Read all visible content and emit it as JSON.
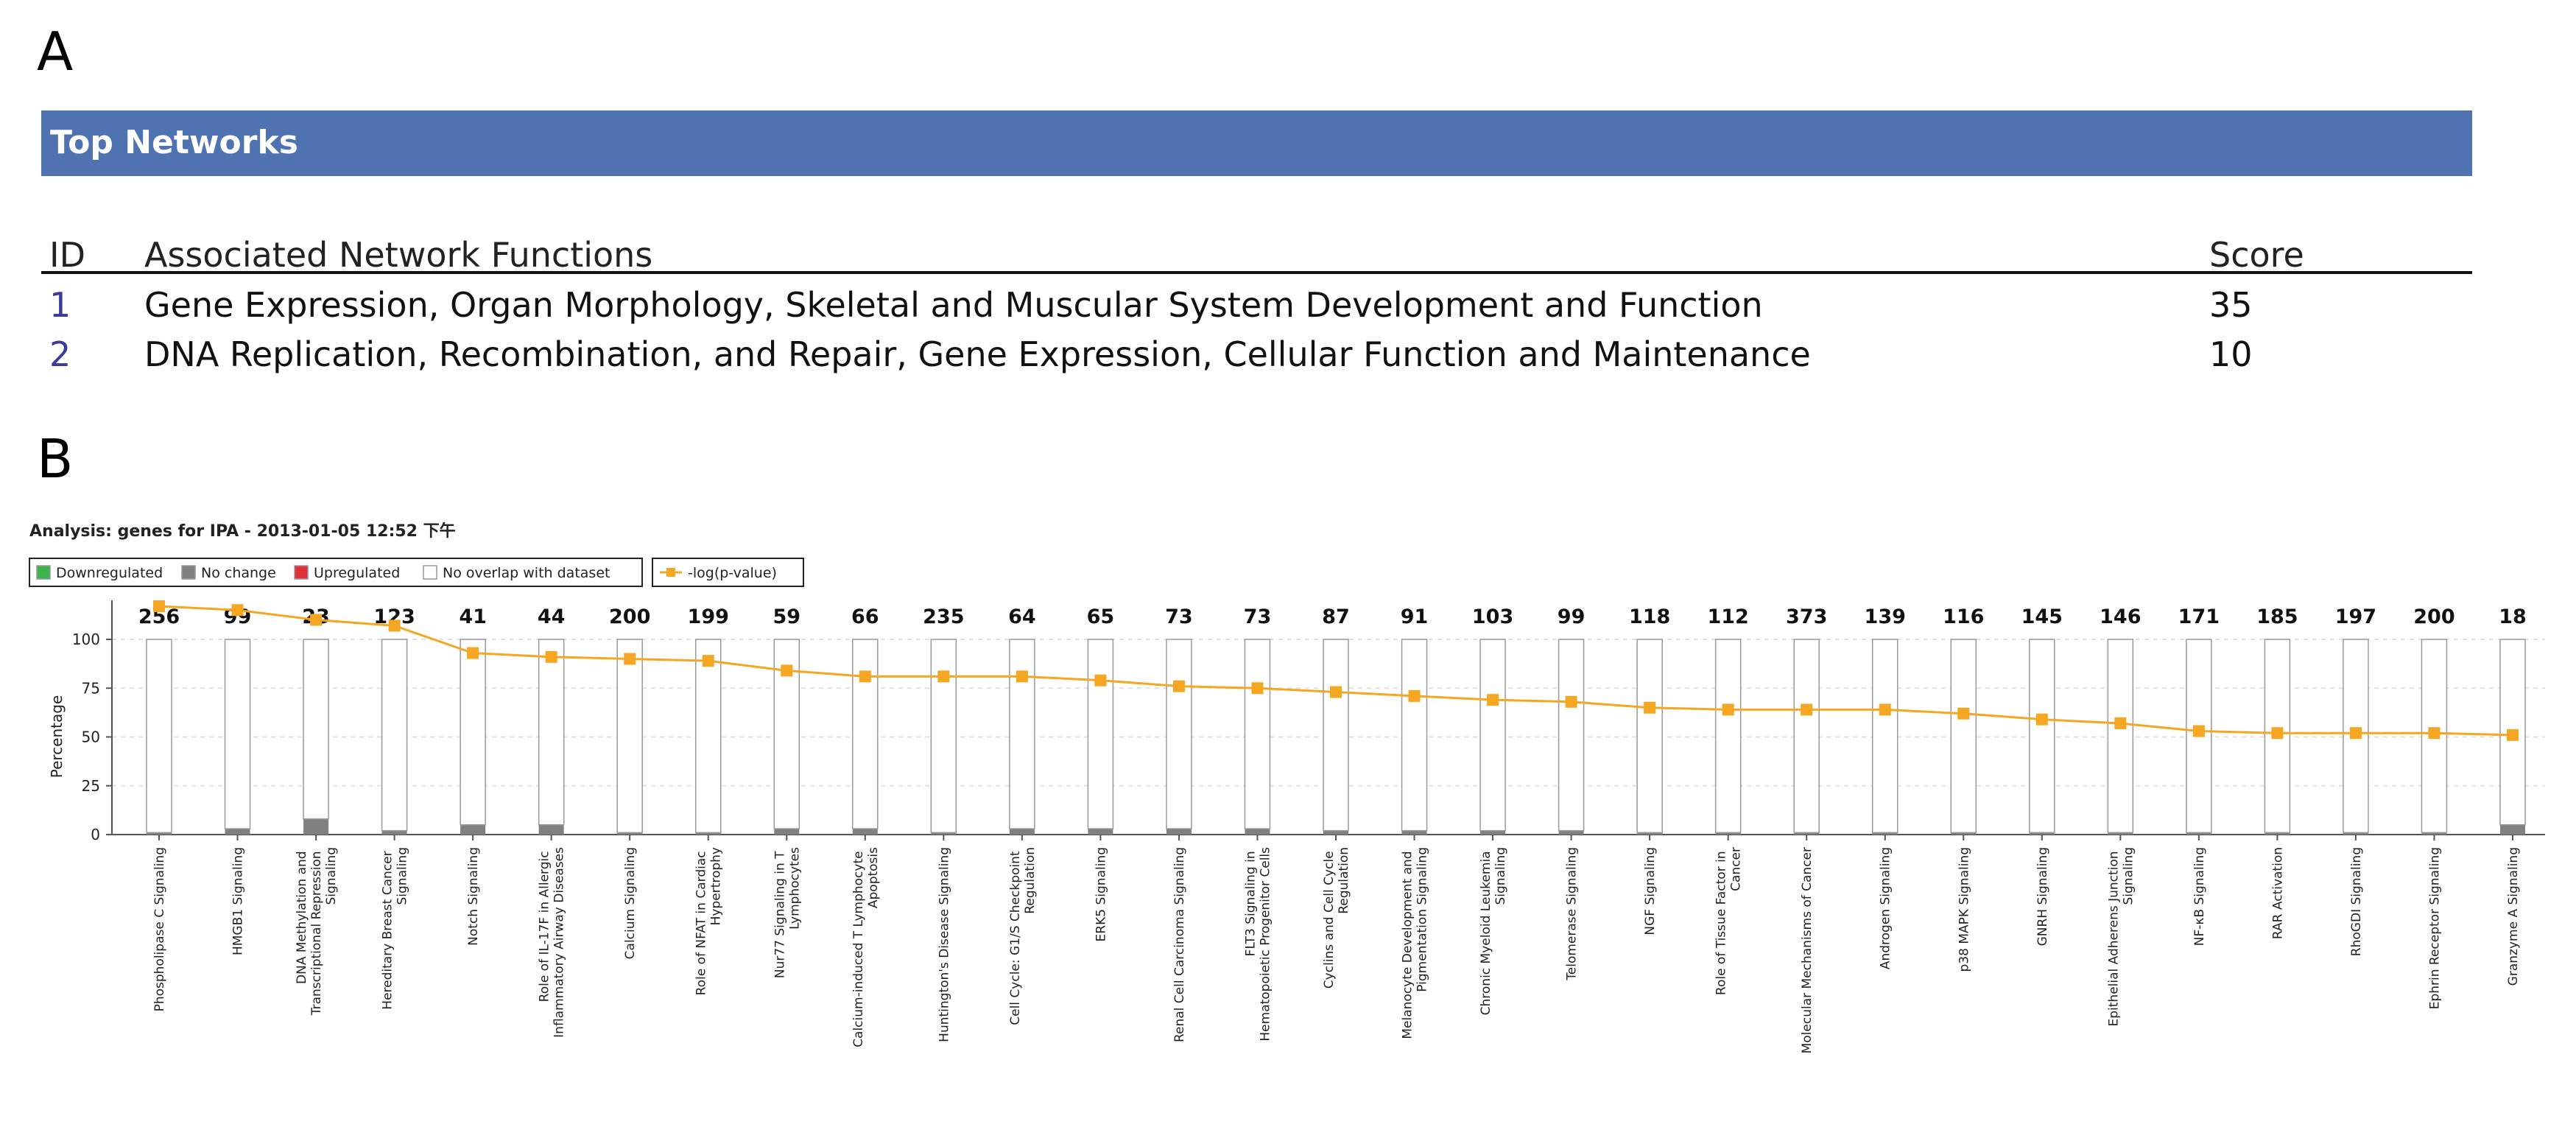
{
  "panel_labels": [
    "A",
    "B"
  ],
  "table": {
    "title": "Top Networks",
    "headers": [
      "ID",
      "Associated Network Functions",
      "Score"
    ],
    "rows": [
      [
        1,
        "Gene Expression, Organ Morphology, Skeletal and Muscular System Development and Function",
        35
      ],
      [
        2,
        "DNA Replication, Recombination, and Repair, Gene Expression, Cellular Function and Maintenance",
        10
      ]
    ]
  },
  "chart_data": {
    "type": "bar",
    "title": "Analysis: genes for IPA - 2013-01-05 12:52 下午",
    "ylabel": "Percentage",
    "ylim": [
      0,
      120
    ],
    "yticks": [
      0,
      25,
      50,
      75,
      100
    ],
    "grid": true,
    "categories": [
      "Phospholipase C Signaling",
      "HMGB1 Signaling",
      "DNA Methylation and Transcriptional Repression Signaling",
      "Hereditary Breast Cancer Signaling",
      "Notch Signaling",
      "Role of IL-17F in Allergic Inflammatory Airway Diseases",
      "Calcium Signaling",
      "Role of NFAT in Cardiac Hypertrophy",
      "Nur77 Signaling in T Lymphocytes",
      "Calcium-induced T Lymphocyte Apoptosis",
      "Huntington's Disease Signaling",
      "Cell Cycle: G1/S Checkpoint Regulation",
      "ERK5 Signaling",
      "Renal Cell Carcinoma Signaling",
      "FLT3 Signaling in Hematopoietic Progenitor Cells",
      "Cyclins and Cell Cycle Regulation",
      "Melanocyte Development and Pigmentation Signaling",
      "Chronic Myeloid Leukemia Signaling",
      "Telomerase Signaling",
      "NGF Signaling",
      "Role of Tissue Factor in Cancer",
      "Molecular Mechanisms of Cancer",
      "Androgen Signaling",
      "p38 MAPK Signaling",
      "GNRH Signaling",
      "Epithelial Adherens Junction Signaling",
      "NF-κB Signaling",
      "RAR Activation",
      "RhoGDI Signaling",
      "Ephrin Receptor Signaling",
      "Granzyme A Signaling"
    ],
    "totals": [
      256,
      99,
      23,
      123,
      41,
      44,
      200,
      199,
      59,
      66,
      235,
      64,
      65,
      73,
      73,
      87,
      91,
      103,
      99,
      118,
      112,
      373,
      139,
      116,
      145,
      146,
      171,
      185,
      197,
      200,
      18
    ],
    "series": [
      {
        "name": "Downregulated",
        "color": "#3cb44b",
        "values": [
          0,
          0,
          0,
          0,
          0,
          0,
          0,
          0,
          0,
          0,
          0,
          0,
          0,
          0,
          0,
          0,
          0,
          0,
          0,
          0,
          0,
          0,
          0,
          0,
          0,
          0,
          0,
          0,
          0,
          0,
          0
        ]
      },
      {
        "name": "No change",
        "color": "#808080",
        "values": [
          1,
          3,
          8,
          2,
          5,
          5,
          1,
          1,
          3,
          3,
          1,
          3,
          3,
          3,
          3,
          2,
          2,
          2,
          2,
          1,
          1,
          1,
          1,
          1,
          1,
          1,
          1,
          1,
          1,
          1,
          5
        ]
      },
      {
        "name": "Upregulated",
        "color": "#e0303a",
        "values": [
          0,
          0,
          0,
          0,
          0,
          0,
          0,
          0,
          0,
          0,
          0,
          0,
          0,
          0,
          0,
          0,
          0,
          0,
          0,
          0,
          0,
          0,
          0,
          0,
          0,
          0,
          0,
          0,
          0,
          0,
          0
        ]
      },
      {
        "name": "No overlap with dataset",
        "color": "#ffffff",
        "values": [
          99,
          97,
          92,
          98,
          95,
          95,
          99,
          99,
          97,
          97,
          99,
          97,
          97,
          97,
          97,
          98,
          98,
          98,
          98,
          99,
          99,
          99,
          99,
          99,
          99,
          99,
          99,
          99,
          99,
          99,
          95
        ]
      },
      {
        "name": "-log(p-value)",
        "color": "#f5a623",
        "type": "line",
        "values": [
          117,
          115,
          110,
          107,
          93,
          91,
          90,
          89,
          84,
          81,
          81,
          81,
          79,
          76,
          75,
          73,
          71,
          69,
          68,
          65,
          64,
          64,
          64,
          62,
          59,
          57,
          53,
          52,
          52,
          52,
          51
        ]
      }
    ]
  }
}
